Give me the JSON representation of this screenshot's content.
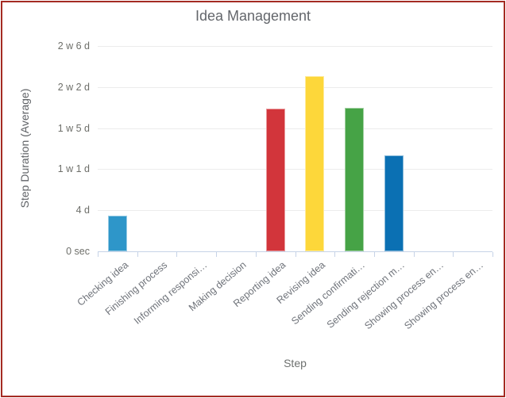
{
  "window": {
    "border_color": "#a42b23"
  },
  "chart_data": {
    "type": "bar",
    "title": "Idea Management",
    "xlabel": "Step",
    "ylabel": "Step Duration (Average)",
    "categories": [
      "Checking idea",
      "Finishing process",
      "Informing responsi…",
      "Making decision",
      "Reporting idea",
      "Revising idea",
      "Sending confirmati…",
      "Sending rejection m…",
      "Showing process en…",
      "Showing process en…"
    ],
    "values_days": [
      3.5,
      0,
      0,
      0,
      13.9,
      17.1,
      14.0,
      9.35,
      0,
      0
    ],
    "bar_colors": [
      "#2e96c9",
      null,
      null,
      null,
      "#d2353b",
      "#fdd73a",
      "#46a346",
      "#0b70b3",
      null,
      null
    ],
    "y_ticks": [
      {
        "label": "0 sec",
        "days": 0
      },
      {
        "label": "4 d",
        "days": 4
      },
      {
        "label": "1 w 1 d",
        "days": 8
      },
      {
        "label": "1 w 5 d",
        "days": 12
      },
      {
        "label": "2 w 2 d",
        "days": 16
      },
      {
        "label": "2 w 6 d",
        "days": 20
      }
    ],
    "ylim": [
      0,
      20
    ],
    "grid": true,
    "legend": "none",
    "styles": {
      "grid_color": "#ececec",
      "axis_color": "#c6d3e7",
      "title_color": "#63666b",
      "y_tick_color": "#6e6f6a",
      "x_tick_color": "#6f737a",
      "bar_stroke": "rgba(255,255,255,0.5)"
    }
  }
}
